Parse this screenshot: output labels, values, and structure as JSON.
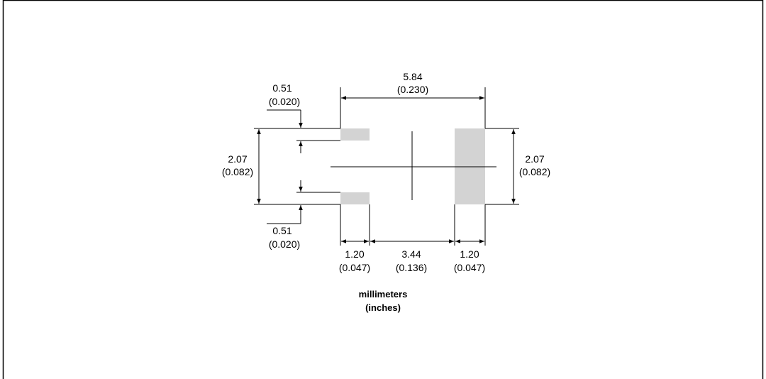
{
  "colors": {
    "pad_fill": "#d3d3d3",
    "line": "#000000",
    "background": "#ffffff"
  },
  "dimensions": {
    "pitch": {
      "mm": "5.84",
      "in": "(0.230)"
    },
    "small_pad_height_top": {
      "mm": "0.51",
      "in": "(0.020)"
    },
    "small_pad_height_bottom": {
      "mm": "0.51",
      "in": "(0.020)"
    },
    "left_span": {
      "mm": "2.07",
      "in": "(0.082)"
    },
    "right_span": {
      "mm": "2.07",
      "in": "(0.082)"
    },
    "left_pad_width": {
      "mm": "1.20",
      "in": "(0.047)"
    },
    "gap": {
      "mm": "3.44",
      "in": "(0.136)"
    },
    "right_pad_width": {
      "mm": "1.20",
      "in": "(0.047)"
    }
  },
  "units": {
    "primary": "millimeters",
    "secondary": "(inches)"
  }
}
